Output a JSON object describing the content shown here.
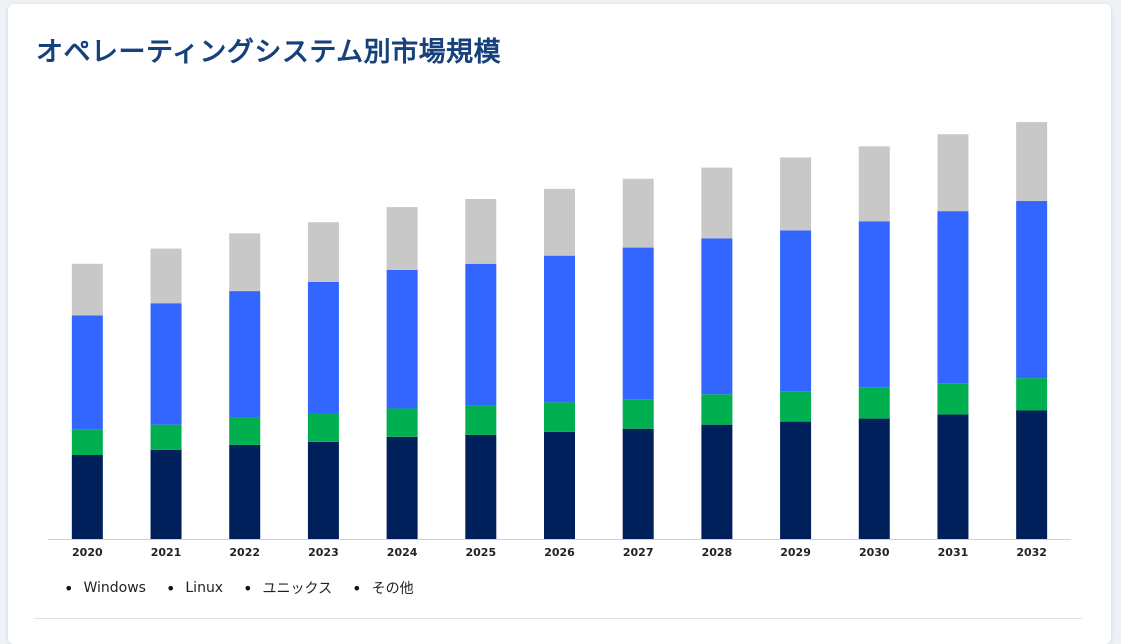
{
  "title": "オペレーティングシステム別市場規模",
  "chart_data": {
    "type": "bar",
    "stacked": true,
    "categories": [
      "2020",
      "2021",
      "2022",
      "2023",
      "2024",
      "2025",
      "2026",
      "2027",
      "2028",
      "2029",
      "2030",
      "2031",
      "2032"
    ],
    "series": [
      {
        "name": "Windows",
        "color": "#00205b",
        "values": [
          83,
          88,
          93,
          96,
          101,
          103,
          106,
          109,
          113,
          116,
          119,
          123,
          127
        ]
      },
      {
        "name": "Linux",
        "color": "#00b050",
        "values": [
          25,
          25,
          27,
          28,
          28,
          29,
          29,
          29,
          30,
          30,
          31,
          31,
          32
        ]
      },
      {
        "name": "ユニックス",
        "color": "#3366ff",
        "values": [
          113,
          120,
          125,
          130,
          137,
          140,
          145,
          150,
          154,
          159,
          164,
          170,
          175
        ]
      },
      {
        "name": "その他",
        "color": "#c8c8c8",
        "values": [
          51,
          54,
          57,
          59,
          62,
          64,
          66,
          68,
          70,
          72,
          74,
          76,
          78
        ]
      }
    ],
    "ylim": [
      0,
      420
    ],
    "grid": false,
    "legend_position": "bottom-left"
  }
}
